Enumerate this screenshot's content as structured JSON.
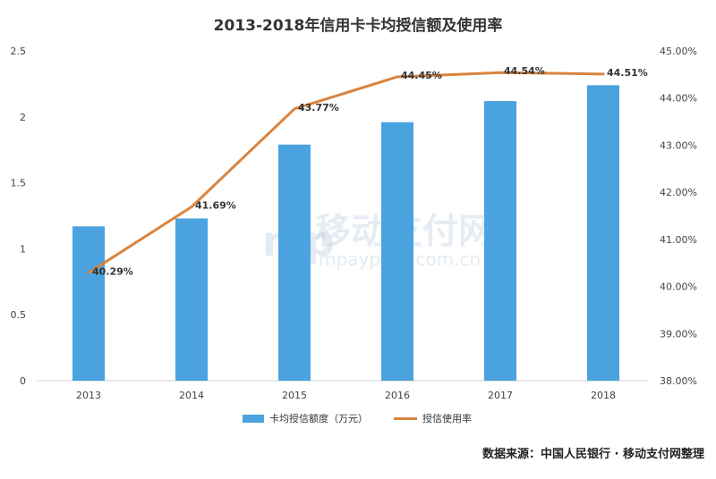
{
  "chart_data": {
    "type": "bar",
    "title": "2013-2018年信用卡卡均授信额及使用率",
    "categories": [
      "2013",
      "2014",
      "2015",
      "2016",
      "2017",
      "2018"
    ],
    "series": [
      {
        "name": "卡均授信额度（万元）",
        "type": "bar",
        "axis": "left",
        "values": [
          1.17,
          1.23,
          1.79,
          1.96,
          2.12,
          2.24
        ],
        "color": "#4aa3df"
      },
      {
        "name": "授信使用率",
        "type": "line",
        "axis": "right",
        "values": [
          40.29,
          41.69,
          43.77,
          44.45,
          44.54,
          44.51
        ],
        "labels": [
          "40.29%",
          "41.69%",
          "43.77%",
          "44.45%",
          "44.54%",
          "44.51%"
        ],
        "color": "#d9843f"
      }
    ],
    "y_left": {
      "min": 0,
      "max": 2.5,
      "ticks": [
        "0",
        "0.5",
        "1",
        "1.5",
        "2",
        "2.5"
      ]
    },
    "y_right": {
      "min": 38,
      "max": 45,
      "ticks": [
        "38.00%",
        "39.00%",
        "40.00%",
        "41.00%",
        "42.00%",
        "43.00%",
        "44.00%",
        "45.00%"
      ]
    },
    "grid": false,
    "legend": "bottom"
  },
  "watermark": {
    "logo": "mp",
    "cn": "移动支付网",
    "en": "mpaypass.com.cn"
  },
  "source": "数据来源：中国人民银行 · 移动支付网整理"
}
